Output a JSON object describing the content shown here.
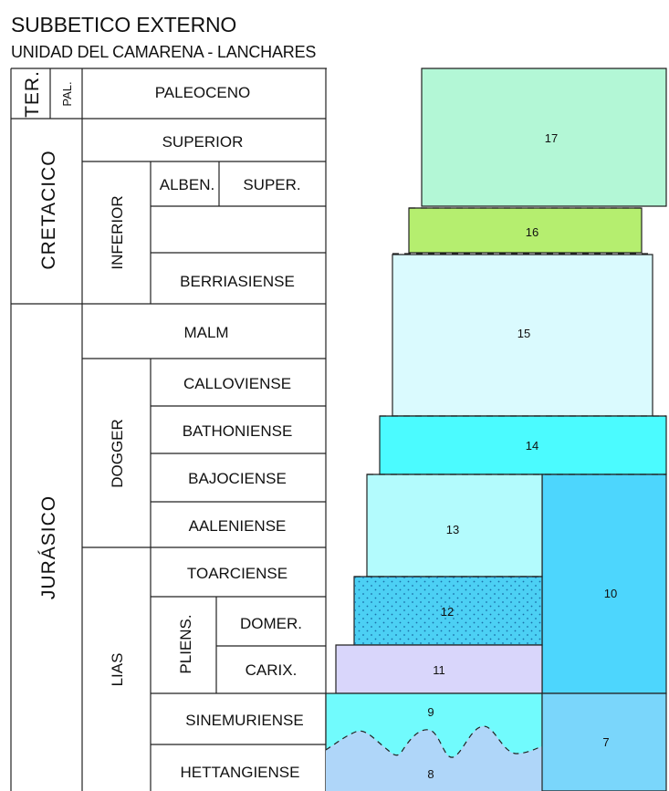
{
  "title": "SUBBETICO EXTERNO",
  "subtitle": "UNIDAD DEL CAMARENA - LANCHARES",
  "chronostratigraphy": {
    "ter": "TER.",
    "pal": "PAL.",
    "paleoceno": "PALEOCENO",
    "cretacico": "CRETACICO",
    "superior": "SUPERIOR",
    "inferior": "INFERIOR",
    "alben": "ALBEN.",
    "super": "SUPER.",
    "berriasiense": "BERRIASIENSE",
    "jurasico": "JURÁSICO",
    "malm": "MALM",
    "dogger": "DOGGER",
    "calloviense": "CALLOVIENSE",
    "bathoniense": "BATHONIENSE",
    "bajociense": "BAJOCIENSE",
    "aaleniense": "AALENIENSE",
    "lias": "LIAS",
    "toarciense": "TOARCIENSE",
    "pliens": "PLIENS.",
    "domer": "DOMER.",
    "carix": "CARIX.",
    "sinemuriense": "SINEMURIENSE",
    "hettangiense": "HETTANGIENSE"
  },
  "units": [
    {
      "label": "17",
      "color": "#b3f7d6"
    },
    {
      "label": "16",
      "color": "#b5ee6f"
    },
    {
      "label": "15",
      "color": "#dafafe"
    },
    {
      "label": "14",
      "color": "#4bfbff"
    },
    {
      "label": "13",
      "color": "#b3fbfd"
    },
    {
      "label": "12",
      "color": "#4cd0f4"
    },
    {
      "label": "11",
      "color": "#d9d6fb"
    },
    {
      "label": "10",
      "color": "#4dd6fd"
    },
    {
      "label": "9",
      "color": "#71fbfd"
    },
    {
      "label": "8",
      "color": "#afd6f9"
    },
    {
      "label": "7",
      "color": "#7ad6fb"
    }
  ]
}
